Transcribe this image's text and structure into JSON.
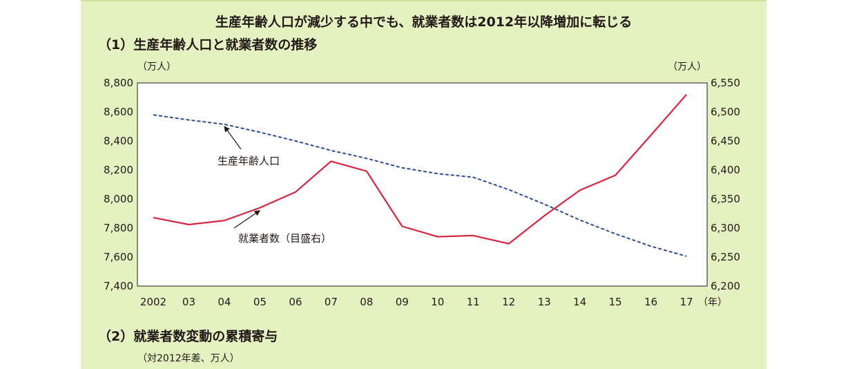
{
  "main_title": "生産年齢人口が減少する中でも、就業者数は2012年以降増加に転じる",
  "section1_title": "（1）生産年齢人口と就業者数の推移",
  "section2_title": "（2）就業者数変動の累積寄与",
  "section2_unit": "（対2012年差、万人）",
  "colors": {
    "panel_bg": "#e4f2c2",
    "employed_line": "#d7243f",
    "working_age_line": "#2c4a9b"
  },
  "chart_data": {
    "type": "line",
    "title": "（1）生産年齢人口と就業者数の推移",
    "categories": [
      "2002",
      "03",
      "04",
      "05",
      "06",
      "07",
      "08",
      "09",
      "10",
      "11",
      "12",
      "13",
      "14",
      "15",
      "16",
      "17"
    ],
    "x_unit_label": "（年）",
    "y_left": {
      "unit_label": "（万人）",
      "ylim": [
        7400,
        8800
      ],
      "ticks": [
        "7,400",
        "7,600",
        "7,800",
        "8,000",
        "8,200",
        "8,400",
        "8,600",
        "8,800"
      ]
    },
    "y_right": {
      "unit_label": "（万人）",
      "ylim": [
        6200,
        6550
      ],
      "ticks": [
        "6,200",
        "6,250",
        "6,300",
        "6,350",
        "6,400",
        "6,450",
        "6,500",
        "6,550"
      ]
    },
    "grid": false,
    "series": [
      {
        "name": "生産年齢人口",
        "axis": "left",
        "style": "dashed",
        "values": [
          8580,
          8545,
          8515,
          8460,
          8400,
          8335,
          8280,
          8215,
          8175,
          8150,
          8065,
          7965,
          7855,
          7760,
          7675,
          7605
        ]
      },
      {
        "name": "就業者数（目盛右）",
        "axis": "right",
        "style": "solid",
        "values": [
          6318,
          6306,
          6313,
          6335,
          6362,
          6415,
          6398,
          6303,
          6285,
          6287,
          6273,
          6321,
          6365,
          6391,
          6460,
          6530
        ]
      }
    ],
    "annotations": [
      {
        "text": "生産年齢人口",
        "series": 0,
        "category": "04"
      },
      {
        "text": "就業者数（目盛右）",
        "series": 1,
        "category": "05"
      }
    ]
  }
}
